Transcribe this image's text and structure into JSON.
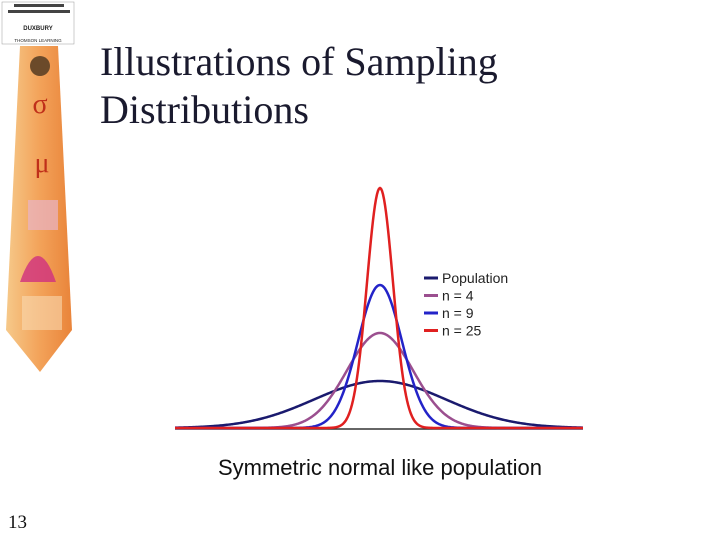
{
  "header": {
    "title_lines": [
      "Illustrations of  Sampling",
      "Distributions"
    ]
  },
  "banner": {
    "publisher": "DUXBURY",
    "publisher2": "THOMSON LEARNING",
    "symbol_sigma": "σ",
    "symbol_mu": "μ"
  },
  "figure": {
    "legend": [
      {
        "name": "Population",
        "color": "#1a1a6e"
      },
      {
        "name": "n =  4",
        "color": "#9b4f8f"
      },
      {
        "name": "n = 9",
        "color": "#2323c8"
      },
      {
        "name": "n = 25",
        "color": "#e02020"
      }
    ],
    "caption": "Symmetric normal like population"
  },
  "footer": {
    "page": "13"
  }
}
